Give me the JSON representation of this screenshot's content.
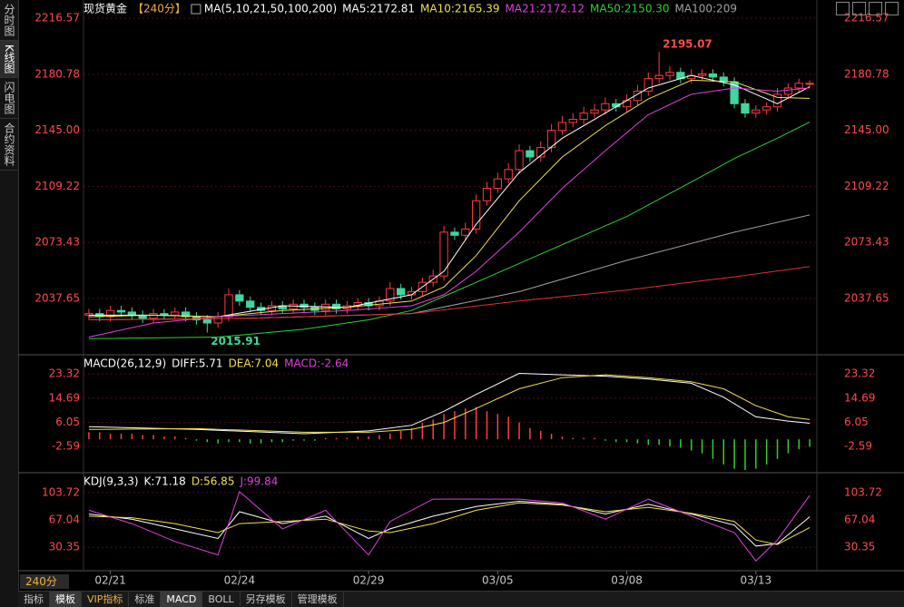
{
  "sidebar_tabs": [
    "分时图",
    "K线图",
    "闪电图",
    "合约资料"
  ],
  "toolbar": {
    "period": "240分",
    "tabs": [
      "指标",
      "模板",
      "VIP指标",
      "标准",
      "MACD",
      "BOLL",
      "另存模板",
      "管理模板"
    ]
  },
  "chart_data": [
    {
      "type": "candlestick",
      "title": "现货黄金",
      "subtitle": "【240分】",
      "ma_label": "MA(5,10,21,50,100,200)",
      "up_color": "#ff3b3b",
      "down_color": "#3fd6a0",
      "categories": [
        null,
        null,
        "02/21",
        null,
        null,
        null,
        null,
        null,
        null,
        null,
        null,
        null,
        null,
        null,
        "02/24",
        null,
        null,
        null,
        null,
        null,
        null,
        null,
        null,
        null,
        null,
        null,
        "02/29",
        null,
        null,
        null,
        null,
        null,
        null,
        null,
        null,
        null,
        null,
        null,
        "03/05",
        null,
        null,
        null,
        null,
        null,
        null,
        null,
        null,
        null,
        null,
        null,
        "03/08",
        null,
        null,
        null,
        null,
        null,
        null,
        null,
        null,
        null,
        null,
        null,
        "03/13",
        null,
        null,
        null,
        null,
        null
      ],
      "open": [
        2027,
        2028,
        2026,
        2030,
        2029,
        2027,
        2025,
        2028,
        2027,
        2029,
        2026,
        2024,
        2022,
        2026,
        2040,
        2036,
        2032,
        2030,
        2033,
        2031,
        2034,
        2032,
        2030,
        2034,
        2031,
        2033,
        2035,
        2033,
        2036,
        2044,
        2040,
        2042,
        2048,
        2052,
        2080,
        2078,
        2082,
        2100,
        2108,
        2114,
        2120,
        2132,
        2128,
        2134,
        2145,
        2150,
        2152,
        2156,
        2158,
        2162,
        2160,
        2164,
        2170,
        2178,
        2180,
        2182,
        2178,
        2180,
        2181,
        2179,
        2176,
        2162,
        2156,
        2158,
        2160,
        2168,
        2172,
        2175
      ],
      "high": [
        2031,
        2031,
        2033,
        2033,
        2032,
        2030,
        2031,
        2031,
        2032,
        2032,
        2029,
        2027,
        2029,
        2044,
        2043,
        2039,
        2035,
        2036,
        2036,
        2037,
        2037,
        2035,
        2037,
        2037,
        2036,
        2038,
        2038,
        2039,
        2048,
        2047,
        2045,
        2051,
        2056,
        2084,
        2083,
        2086,
        2104,
        2112,
        2118,
        2124,
        2136,
        2135,
        2138,
        2149,
        2154,
        2156,
        2160,
        2162,
        2166,
        2165,
        2168,
        2174,
        2182,
        2195.07,
        2186,
        2185,
        2184,
        2184,
        2184,
        2182,
        2179,
        2165,
        2161,
        2163,
        2172,
        2175,
        2178,
        2177
      ],
      "low": [
        2024,
        2023,
        2023,
        2026,
        2024,
        2022,
        2022,
        2024,
        2024,
        2023,
        2021,
        2015.91,
        2019,
        2023,
        2033,
        2029,
        2027,
        2027,
        2028,
        2028,
        2029,
        2027,
        2027,
        2028,
        2028,
        2030,
        2030,
        2030,
        2033,
        2037,
        2037,
        2039,
        2045,
        2049,
        2075,
        2075,
        2079,
        2097,
        2105,
        2111,
        2117,
        2125,
        2125,
        2131,
        2142,
        2147,
        2149,
        2153,
        2155,
        2157,
        2157,
        2161,
        2167,
        2175,
        2177,
        2175,
        2175,
        2177,
        2176,
        2173,
        2159,
        2153,
        2153,
        2155,
        2157,
        2165,
        2169,
        2172
      ],
      "close": [
        2028,
        2026,
        2030,
        2029,
        2027,
        2025,
        2028,
        2027,
        2029,
        2026,
        2024,
        2022,
        2026,
        2040,
        2036,
        2032,
        2030,
        2033,
        2031,
        2034,
        2032,
        2030,
        2034,
        2031,
        2033,
        2035,
        2033,
        2036,
        2044,
        2040,
        2042,
        2048,
        2052,
        2080,
        2078,
        2082,
        2100,
        2108,
        2114,
        2120,
        2132,
        2128,
        2134,
        2145,
        2150,
        2152,
        2156,
        2158,
        2162,
        2160,
        2164,
        2170,
        2178,
        2180,
        2182,
        2178,
        2180,
        2181,
        2179,
        2176,
        2162,
        2156,
        2158,
        2160,
        2168,
        2172,
        2175,
        2175
      ],
      "ylim": [
        2002.3,
        2222.4
      ],
      "yticks": [
        2216.57,
        2180.78,
        {
          "value": 2145,
          "label": "2145.00"
        },
        2109.22,
        2073.43,
        2037.65
      ],
      "series": [
        {
          "name": "MA5:2172.81",
          "color": "#ffffff",
          "x": [
            0,
            6,
            12,
            18,
            24,
            30,
            33,
            36,
            40,
            44,
            48,
            52,
            56,
            60,
            64,
            67
          ],
          "values": [
            2027,
            2027,
            2026,
            2033,
            2032,
            2040,
            2055,
            2085,
            2118,
            2140,
            2156,
            2172,
            2180,
            2174,
            2162,
            2172.81
          ]
        },
        {
          "name": "MA10:2165.39",
          "color": "#f0e050",
          "x": [
            0,
            6,
            12,
            18,
            24,
            30,
            33,
            36,
            40,
            44,
            48,
            52,
            56,
            60,
            64,
            67
          ],
          "values": [
            2026,
            2027,
            2026,
            2030,
            2032,
            2036,
            2045,
            2065,
            2100,
            2128,
            2148,
            2165,
            2177,
            2176,
            2166,
            2165.39
          ]
        },
        {
          "name": "MA21:2172.12",
          "color": "#e040e0",
          "x": [
            0,
            6,
            12,
            18,
            24,
            30,
            33,
            36,
            40,
            44,
            48,
            52,
            56,
            60,
            64,
            67
          ],
          "values": [
            2013,
            2022,
            2026,
            2028,
            2030,
            2033,
            2040,
            2055,
            2080,
            2108,
            2132,
            2155,
            2168,
            2172,
            2170,
            2172.12
          ]
        },
        {
          "name": "MA50:2150.30",
          "color": "#30d030",
          "x": [
            0,
            12,
            20,
            26,
            30,
            34,
            40,
            46,
            50,
            56,
            60,
            64,
            67
          ],
          "values": [
            2012,
            2013,
            2018,
            2024,
            2030,
            2042,
            2060,
            2078,
            2090,
            2112,
            2127,
            2140,
            2150.3
          ]
        },
        {
          "name": "MA100:209",
          "color": "#a0a0a0",
          "x": [
            0,
            15,
            30,
            40,
            50,
            60,
            67
          ],
          "values": [
            2024,
            2025,
            2028,
            2042,
            2062,
            2080,
            2091
          ]
        },
        {
          "color": "#e03030",
          "x": [
            0,
            15,
            30,
            40,
            50,
            60,
            67
          ],
          "values": [
            2024,
            2025,
            2028,
            2036,
            2043,
            2051.5,
            2058
          ]
        }
      ]
    },
    {
      "type": "macd",
      "title": "MACD(26,12,9)",
      "ylim": [
        -11.6,
        29.5
      ],
      "yticks": [
        23.32,
        14.69,
        6.05,
        -2.59
      ],
      "histogram": {
        "name": "MACD:-2.64",
        "color": "#e040e0",
        "up_color": "#ff4040",
        "down_color": "#30d030",
        "values": [
          2.5,
          2.5,
          2,
          2,
          2,
          1.5,
          1.5,
          1,
          1,
          0.5,
          -0.5,
          -1,
          -1.5,
          -1,
          -1,
          -1.5,
          -1.5,
          -1,
          -1,
          -0.5,
          -0.5,
          -0.5,
          0.5,
          0.5,
          0.5,
          1,
          1,
          1.5,
          2,
          3,
          4,
          6,
          7,
          9,
          10,
          11,
          11.5,
          10,
          9,
          8,
          6,
          4,
          3,
          2,
          1,
          0.5,
          0.5,
          0.5,
          -0.5,
          -1,
          -1,
          -1.5,
          -2,
          -2,
          -2.5,
          -3,
          -4,
          -5,
          -7,
          -9,
          -10.5,
          -11,
          -10.5,
          -9,
          -7,
          -5,
          -3.5,
          -2.64
        ]
      },
      "series": [
        {
          "name": "DIFF:5.71",
          "color": "#ffffff",
          "x": [
            0,
            10,
            20,
            26,
            30,
            33,
            36,
            40,
            44,
            48,
            52,
            56,
            59,
            62,
            65,
            67
          ],
          "values": [
            4.5,
            3.5,
            2,
            3,
            5,
            10,
            16,
            23.5,
            23,
            22.5,
            21.5,
            20,
            15,
            8,
            6.5,
            5.71
          ]
        },
        {
          "name": "DEA:7.04",
          "color": "#f0e050",
          "x": [
            0,
            10,
            20,
            26,
            30,
            33,
            36,
            40,
            44,
            48,
            52,
            56,
            59,
            62,
            65,
            67
          ],
          "values": [
            3.5,
            3.8,
            2.5,
            2.5,
            3.5,
            6,
            11,
            18,
            22,
            23,
            22,
            20.5,
            18,
            12,
            8,
            7.04
          ]
        }
      ]
    },
    {
      "type": "line",
      "title": "KDJ(9,3,3)",
      "ylim": [
        0,
        128
      ],
      "yticks": [
        103.72,
        67.04,
        30.35
      ],
      "series": [
        {
          "name": "K:71.18",
          "color": "#ffffff",
          "x": [
            0,
            4,
            8,
            12,
            14,
            18,
            22,
            26,
            28,
            32,
            36,
            40,
            44,
            48,
            52,
            56,
            60,
            62,
            64,
            67
          ],
          "values": [
            75,
            68,
            55,
            42,
            78,
            62,
            72,
            42,
            55,
            72,
            85,
            92,
            88,
            75,
            88,
            75,
            60,
            32,
            35,
            71.18
          ]
        },
        {
          "name": "D:56.85",
          "color": "#f0e050",
          "x": [
            0,
            4,
            8,
            12,
            14,
            18,
            22,
            26,
            28,
            32,
            36,
            40,
            44,
            48,
            52,
            56,
            60,
            62,
            64,
            67
          ],
          "values": [
            72,
            70,
            62,
            50,
            62,
            65,
            68,
            52,
            50,
            62,
            80,
            90,
            87,
            78,
            84,
            76,
            65,
            40,
            34,
            56.85
          ]
        },
        {
          "name": "J:99.84",
          "color": "#e040e0",
          "x": [
            0,
            4,
            8,
            12,
            14,
            18,
            22,
            26,
            28,
            32,
            36,
            40,
            44,
            48,
            52,
            56,
            60,
            62,
            64,
            67
          ],
          "values": [
            80,
            62,
            38,
            20,
            105,
            55,
            80,
            20,
            65,
            95,
            95,
            95,
            90,
            68,
            95,
            72,
            50,
            12,
            40,
            99.84
          ]
        }
      ]
    }
  ]
}
